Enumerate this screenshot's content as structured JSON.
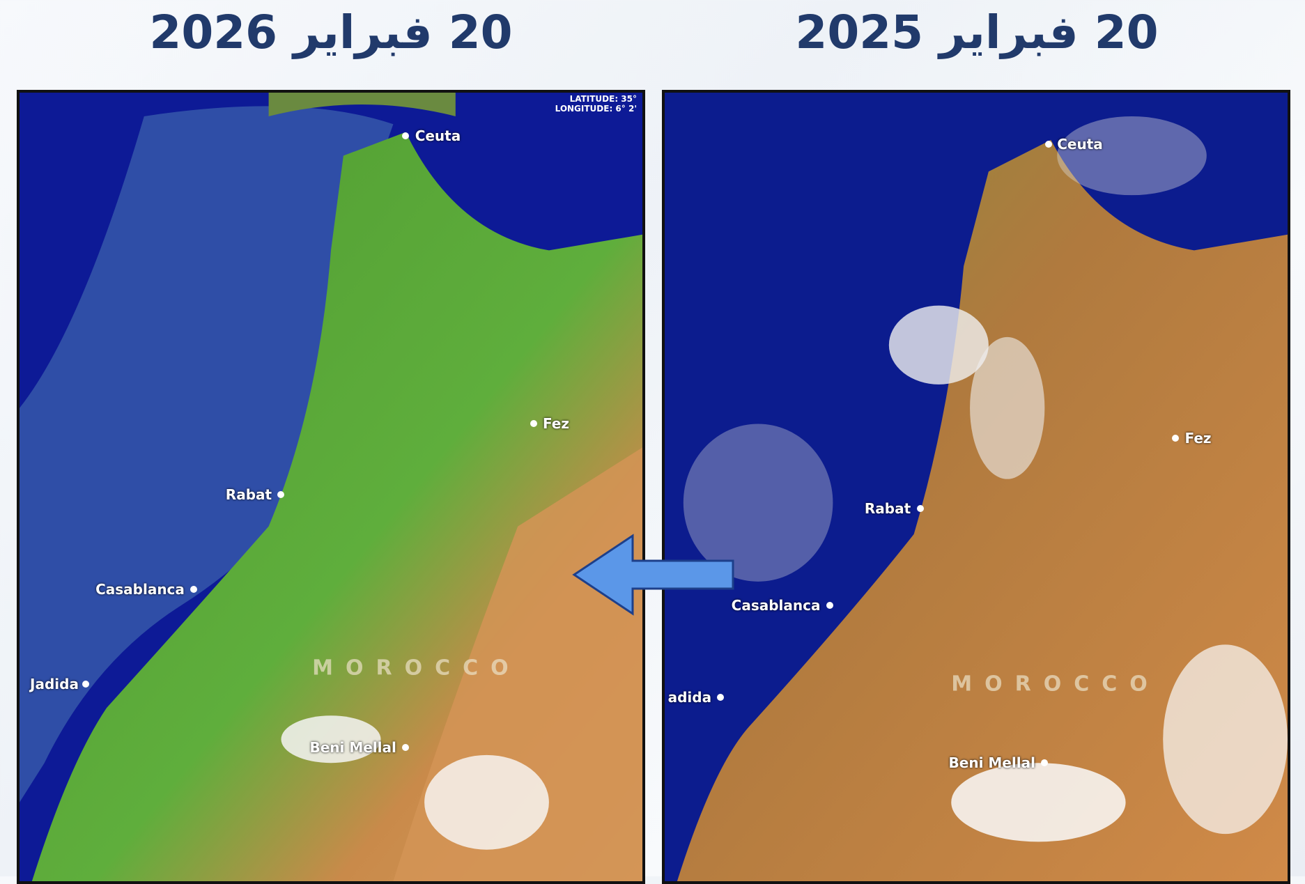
{
  "titles": {
    "left": "20 فبراير 2026",
    "right": "20 فبراير 2025"
  },
  "left_map": {
    "coords": {
      "latitude": "LATITUDE: 35°",
      "longitude": "LONGITUDE: 6° 2'"
    },
    "cities": [
      "Ceuta",
      "Fez",
      "Rabat",
      "Casablanca",
      "Jadida",
      "Beni Mellal"
    ],
    "country": "MOROCCO",
    "land_color": "#5aa83a"
  },
  "right_map": {
    "cities": [
      "Ceuta",
      "Fez",
      "Rabat",
      "Casablanca",
      "adida",
      "Beni Mellal"
    ],
    "country": "MOROCCO",
    "land_color": "#c47a3c"
  },
  "arrow": {
    "direction": "left",
    "color": "#5b97e8"
  }
}
